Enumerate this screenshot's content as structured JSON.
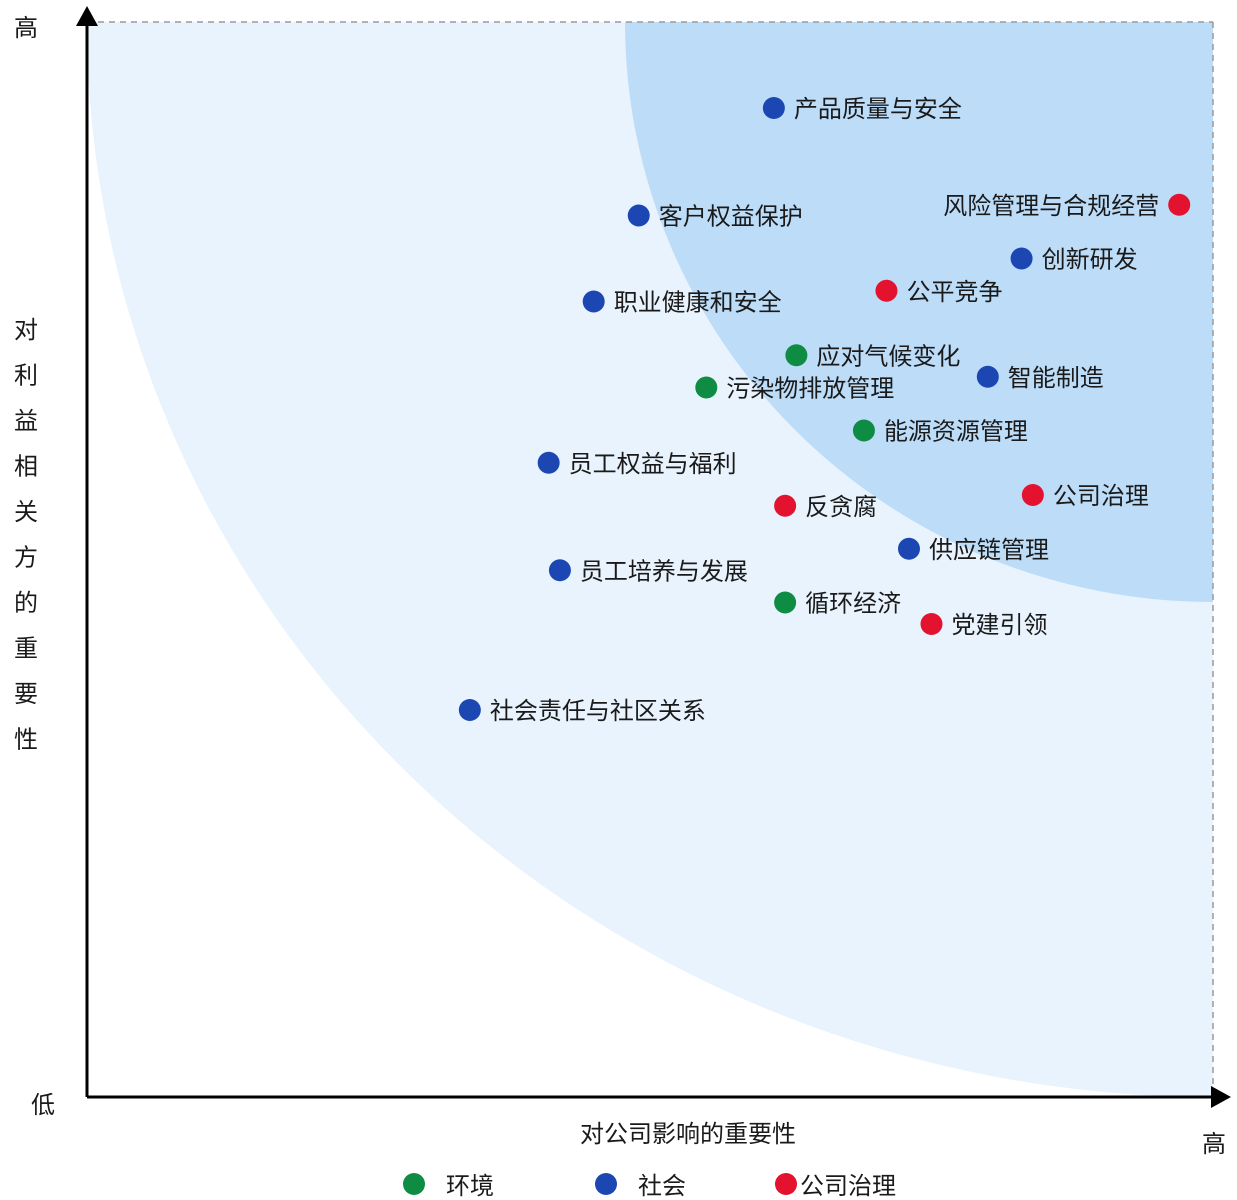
{
  "chart_data": {
    "type": "scatter",
    "title": "",
    "xlabel": "对公司影响的重要性",
    "ylabel": "对利益相关方的重要性",
    "x_low_label": "低",
    "x_high_label": "高",
    "y_high_label": "高",
    "xlim": [
      0,
      100
    ],
    "ylim": [
      0,
      100
    ],
    "categories": [
      {
        "name": "环境",
        "color": "#0f8c43"
      },
      {
        "name": "社会",
        "color": "#1c47b3"
      },
      {
        "name": "公司治理",
        "color": "#e3122f"
      }
    ],
    "points": [
      {
        "label": "产品质量与安全",
        "category": "社会",
        "x": 61,
        "y": 92
      },
      {
        "label": "风险管理与合规经营",
        "category": "公司治理",
        "x": 97,
        "y": 83
      },
      {
        "label": "客户权益保护",
        "category": "社会",
        "x": 49,
        "y": 82
      },
      {
        "label": "创新研发",
        "category": "社会",
        "x": 83,
        "y": 78
      },
      {
        "label": "公平竞争",
        "category": "公司治理",
        "x": 71,
        "y": 75
      },
      {
        "label": "职业健康和安全",
        "category": "社会",
        "x": 45,
        "y": 74
      },
      {
        "label": "应对气候变化",
        "category": "环境",
        "x": 63,
        "y": 69
      },
      {
        "label": "污染物排放管理",
        "category": "环境",
        "x": 55,
        "y": 66
      },
      {
        "label": "智能制造",
        "category": "社会",
        "x": 80,
        "y": 67
      },
      {
        "label": "能源资源管理",
        "category": "环境",
        "x": 69,
        "y": 62
      },
      {
        "label": "员工权益与福利",
        "category": "社会",
        "x": 41,
        "y": 59
      },
      {
        "label": "公司治理",
        "category": "公司治理",
        "x": 84,
        "y": 56
      },
      {
        "label": "反贪腐",
        "category": "公司治理",
        "x": 62,
        "y": 55
      },
      {
        "label": "供应链管理",
        "category": "社会",
        "x": 73,
        "y": 51
      },
      {
        "label": "员工培养与发展",
        "category": "社会",
        "x": 42,
        "y": 49
      },
      {
        "label": "循环经济",
        "category": "环境",
        "x": 62,
        "y": 46
      },
      {
        "label": "党建引领",
        "category": "公司治理",
        "x": 75,
        "y": 44
      },
      {
        "label": "社会责任与社区关系",
        "category": "社会",
        "x": 34,
        "y": 36
      }
    ]
  }
}
